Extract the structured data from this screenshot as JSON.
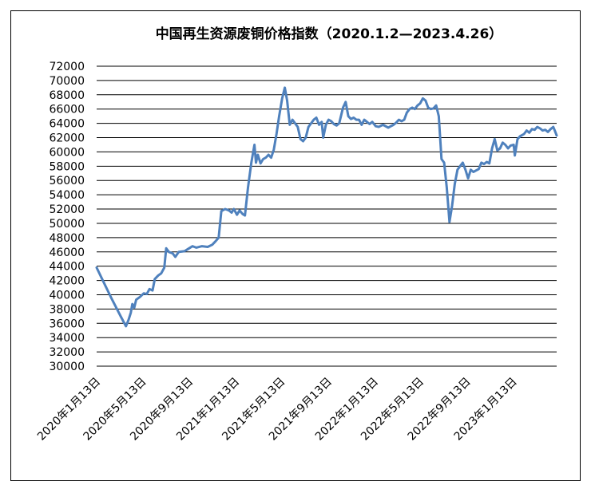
{
  "chart_data": {
    "type": "line",
    "title": "中国再生资源废铜价格指数（2020.1.2—2023.4.26）",
    "xlabel": "",
    "ylabel": "",
    "ylim": [
      30000,
      72000
    ],
    "yticks": [
      30000,
      32000,
      34000,
      36000,
      38000,
      40000,
      42000,
      44000,
      46000,
      48000,
      50000,
      52000,
      54000,
      56000,
      58000,
      60000,
      62000,
      64000,
      66000,
      68000,
      70000,
      72000
    ],
    "xlim": [
      "2020-01-02",
      "2023-04-26"
    ],
    "xtick_labels": [
      "2020年1月13日",
      "2020年5月13日",
      "2020年9月13日",
      "2021年1月13日",
      "2021年5月13日",
      "2021年9月13日",
      "2022年1月13日",
      "2022年5月13日",
      "2022年9月13日",
      "2023年1月13日"
    ],
    "xtick_dates": [
      "2020-01-13",
      "2020-05-13",
      "2020-09-13",
      "2021-01-13",
      "2021-05-13",
      "2021-09-13",
      "2022-01-13",
      "2022-05-13",
      "2022-09-13",
      "2023-01-13"
    ],
    "grid": "horizontal",
    "legend": "none",
    "line_color": "#4f81bd",
    "series": [
      {
        "points": [
          [
            "2020-01-02",
            43800
          ],
          [
            "2020-01-20",
            41800
          ],
          [
            "2020-02-10",
            39500
          ],
          [
            "2020-03-05",
            37000
          ],
          [
            "2020-03-19",
            35600
          ],
          [
            "2020-03-26",
            36500
          ],
          [
            "2020-04-01",
            37500
          ],
          [
            "2020-04-05",
            38700
          ],
          [
            "2020-04-10",
            38200
          ],
          [
            "2020-04-15",
            39300
          ],
          [
            "2020-04-25",
            39700
          ],
          [
            "2020-05-05",
            40200
          ],
          [
            "2020-05-13",
            40100
          ],
          [
            "2020-05-20",
            40800
          ],
          [
            "2020-05-28",
            40600
          ],
          [
            "2020-06-03",
            42200
          ],
          [
            "2020-06-12",
            42700
          ],
          [
            "2020-06-20",
            43000
          ],
          [
            "2020-06-28",
            43800
          ],
          [
            "2020-07-03",
            46500
          ],
          [
            "2020-07-10",
            46000
          ],
          [
            "2020-07-20",
            45800
          ],
          [
            "2020-07-27",
            45300
          ],
          [
            "2020-08-05",
            46000
          ],
          [
            "2020-08-20",
            46100
          ],
          [
            "2020-09-01",
            46500
          ],
          [
            "2020-09-10",
            46800
          ],
          [
            "2020-09-20",
            46600
          ],
          [
            "2020-10-05",
            46800
          ],
          [
            "2020-10-20",
            46700
          ],
          [
            "2020-11-01",
            47000
          ],
          [
            "2020-11-10",
            47500
          ],
          [
            "2020-11-18",
            48000
          ],
          [
            "2020-11-25",
            51700
          ],
          [
            "2020-12-05",
            52000
          ],
          [
            "2020-12-15",
            51800
          ],
          [
            "2020-12-22",
            51500
          ],
          [
            "2020-12-28",
            52000
          ],
          [
            "2021-01-05",
            51200
          ],
          [
            "2021-01-12",
            51800
          ],
          [
            "2021-01-20",
            51300
          ],
          [
            "2021-01-26",
            51100
          ],
          [
            "2021-02-03",
            55000
          ],
          [
            "2021-02-12",
            58500
          ],
          [
            "2021-02-20",
            61000
          ],
          [
            "2021-02-24",
            58500
          ],
          [
            "2021-03-01",
            59600
          ],
          [
            "2021-03-08",
            58400
          ],
          [
            "2021-03-15",
            59000
          ],
          [
            "2021-03-22",
            59200
          ],
          [
            "2021-03-29",
            59600
          ],
          [
            "2021-04-05",
            59200
          ],
          [
            "2021-04-12",
            60300
          ],
          [
            "2021-04-19",
            62500
          ],
          [
            "2021-04-26",
            65000
          ],
          [
            "2021-05-04",
            67500
          ],
          [
            "2021-05-11",
            69000
          ],
          [
            "2021-05-17",
            67200
          ],
          [
            "2021-05-24",
            63800
          ],
          [
            "2021-05-31",
            64500
          ],
          [
            "2021-06-07",
            64000
          ],
          [
            "2021-06-14",
            63500
          ],
          [
            "2021-06-21",
            61800
          ],
          [
            "2021-06-28",
            61500
          ],
          [
            "2021-07-05",
            62000
          ],
          [
            "2021-07-12",
            63500
          ],
          [
            "2021-07-19",
            64000
          ],
          [
            "2021-07-26",
            64500
          ],
          [
            "2021-08-02",
            64800
          ],
          [
            "2021-08-09",
            63800
          ],
          [
            "2021-08-16",
            64200
          ],
          [
            "2021-08-20",
            62000
          ],
          [
            "2021-08-27",
            63800
          ],
          [
            "2021-09-03",
            64500
          ],
          [
            "2021-09-10",
            64300
          ],
          [
            "2021-09-17",
            63900
          ],
          [
            "2021-09-24",
            63700
          ],
          [
            "2021-10-01",
            64000
          ],
          [
            "2021-10-11",
            66200
          ],
          [
            "2021-10-18",
            67000
          ],
          [
            "2021-10-25",
            65000
          ],
          [
            "2021-11-01",
            64600
          ],
          [
            "2021-11-08",
            64800
          ],
          [
            "2021-11-15",
            64500
          ],
          [
            "2021-11-22",
            64500
          ],
          [
            "2021-11-29",
            63800
          ],
          [
            "2021-12-06",
            64500
          ],
          [
            "2021-12-13",
            64200
          ],
          [
            "2021-12-20",
            63900
          ],
          [
            "2021-12-27",
            64200
          ],
          [
            "2022-01-05",
            63600
          ],
          [
            "2022-01-13",
            63500
          ],
          [
            "2022-01-24",
            63800
          ],
          [
            "2022-02-07",
            63400
          ],
          [
            "2022-02-14",
            63600
          ],
          [
            "2022-02-21",
            63800
          ],
          [
            "2022-02-28",
            64100
          ],
          [
            "2022-03-07",
            64500
          ],
          [
            "2022-03-14",
            64300
          ],
          [
            "2022-03-21",
            64500
          ],
          [
            "2022-03-28",
            65500
          ],
          [
            "2022-04-04",
            66000
          ],
          [
            "2022-04-11",
            66200
          ],
          [
            "2022-04-18",
            66000
          ],
          [
            "2022-04-25",
            66500
          ],
          [
            "2022-05-02",
            66800
          ],
          [
            "2022-05-09",
            67500
          ],
          [
            "2022-05-16",
            67200
          ],
          [
            "2022-05-23",
            66200
          ],
          [
            "2022-05-30",
            66000
          ],
          [
            "2022-06-06",
            66100
          ],
          [
            "2022-06-13",
            66500
          ],
          [
            "2022-06-20",
            65000
          ],
          [
            "2022-06-27",
            59000
          ],
          [
            "2022-07-04",
            58500
          ],
          [
            "2022-07-11",
            55000
          ],
          [
            "2022-07-18",
            50200
          ],
          [
            "2022-07-25",
            52500
          ],
          [
            "2022-08-01",
            55500
          ],
          [
            "2022-08-08",
            57500
          ],
          [
            "2022-08-15",
            58000
          ],
          [
            "2022-08-22",
            58500
          ],
          [
            "2022-08-29",
            57500
          ],
          [
            "2022-09-05",
            56300
          ],
          [
            "2022-09-12",
            57500
          ],
          [
            "2022-09-19",
            57200
          ],
          [
            "2022-09-26",
            57400
          ],
          [
            "2022-10-03",
            57600
          ],
          [
            "2022-10-10",
            58500
          ],
          [
            "2022-10-17",
            58300
          ],
          [
            "2022-10-24",
            58600
          ],
          [
            "2022-10-31",
            58400
          ],
          [
            "2022-11-07",
            60500
          ],
          [
            "2022-11-14",
            61800
          ],
          [
            "2022-11-21",
            60200
          ],
          [
            "2022-11-28",
            60500
          ],
          [
            "2022-12-05",
            61300
          ],
          [
            "2022-12-12",
            61000
          ],
          [
            "2022-12-19",
            60500
          ],
          [
            "2022-12-26",
            60900
          ],
          [
            "2023-01-03",
            61000
          ],
          [
            "2023-01-06",
            59500
          ],
          [
            "2023-01-13",
            61800
          ],
          [
            "2023-01-20",
            62200
          ],
          [
            "2023-01-30",
            62500
          ],
          [
            "2023-02-06",
            63000
          ],
          [
            "2023-02-13",
            62700
          ],
          [
            "2023-02-20",
            63200
          ],
          [
            "2023-02-27",
            63100
          ],
          [
            "2023-03-06",
            63500
          ],
          [
            "2023-03-13",
            63300
          ],
          [
            "2023-03-20",
            63000
          ],
          [
            "2023-03-27",
            63100
          ],
          [
            "2023-04-03",
            62800
          ],
          [
            "2023-04-10",
            63200
          ],
          [
            "2023-04-17",
            63500
          ],
          [
            "2023-04-21",
            63000
          ],
          [
            "2023-04-26",
            62300
          ]
        ]
      }
    ]
  }
}
